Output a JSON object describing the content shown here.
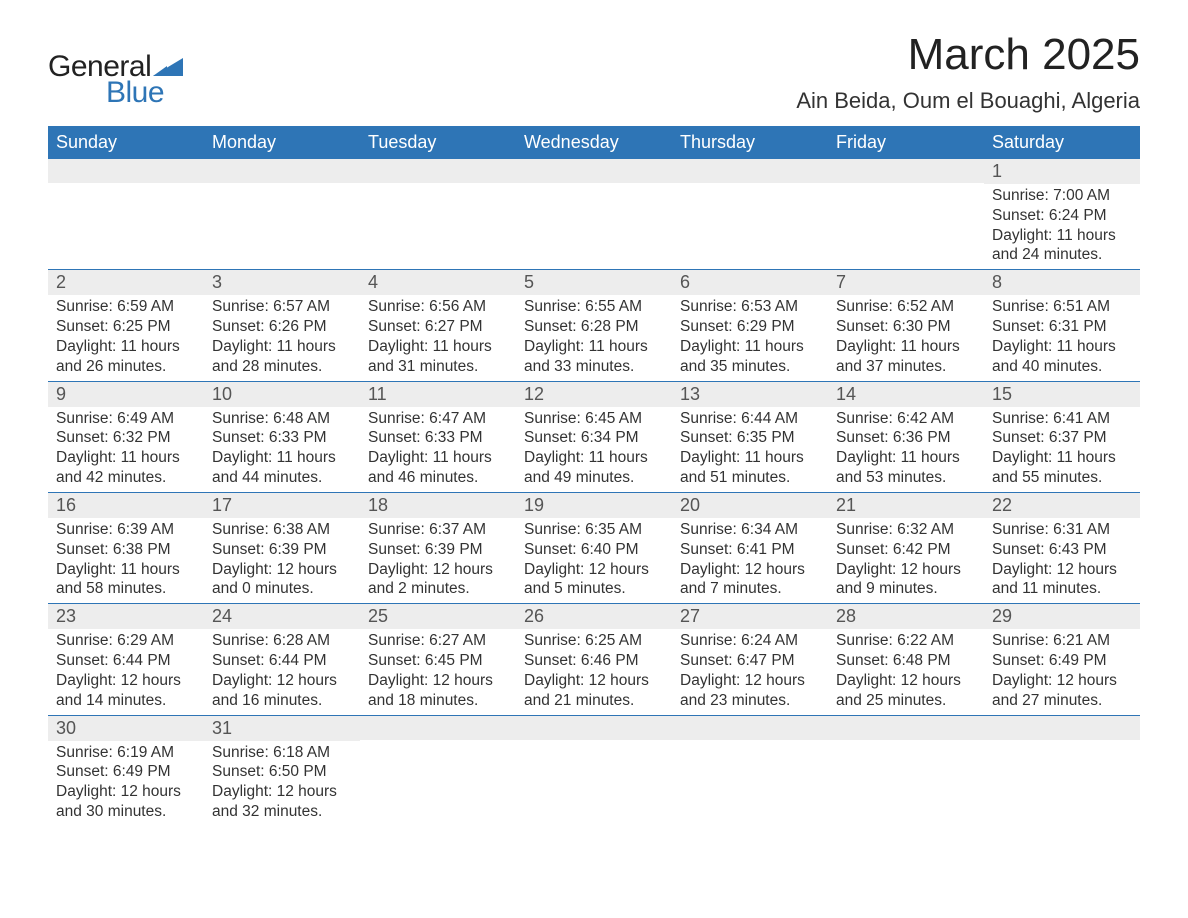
{
  "brand": {
    "name_part1": "General",
    "name_part2": "Blue",
    "text_color": "#222222",
    "accent_color": "#2e75b6"
  },
  "header": {
    "title": "March 2025",
    "subtitle": "Ain Beida, Oum el Bouaghi, Algeria"
  },
  "calendar": {
    "type": "table",
    "day_names": [
      "Sunday",
      "Monday",
      "Tuesday",
      "Wednesday",
      "Thursday",
      "Friday",
      "Saturday"
    ],
    "header_bg": "#2e75b6",
    "header_text_color": "#ffffff",
    "daynum_bg": "#ededed",
    "row_divider_color": "#2e75b6",
    "body_text_color": "#333333",
    "font_family": "Arial",
    "header_fontsize": 18,
    "daynum_fontsize": 18,
    "body_fontsize": 15.5,
    "start_weekday_index": 6,
    "days": [
      {
        "n": 1,
        "sunrise": "7:00 AM",
        "sunset": "6:24 PM",
        "daylight": "11 hours and 24 minutes."
      },
      {
        "n": 2,
        "sunrise": "6:59 AM",
        "sunset": "6:25 PM",
        "daylight": "11 hours and 26 minutes."
      },
      {
        "n": 3,
        "sunrise": "6:57 AM",
        "sunset": "6:26 PM",
        "daylight": "11 hours and 28 minutes."
      },
      {
        "n": 4,
        "sunrise": "6:56 AM",
        "sunset": "6:27 PM",
        "daylight": "11 hours and 31 minutes."
      },
      {
        "n": 5,
        "sunrise": "6:55 AM",
        "sunset": "6:28 PM",
        "daylight": "11 hours and 33 minutes."
      },
      {
        "n": 6,
        "sunrise": "6:53 AM",
        "sunset": "6:29 PM",
        "daylight": "11 hours and 35 minutes."
      },
      {
        "n": 7,
        "sunrise": "6:52 AM",
        "sunset": "6:30 PM",
        "daylight": "11 hours and 37 minutes."
      },
      {
        "n": 8,
        "sunrise": "6:51 AM",
        "sunset": "6:31 PM",
        "daylight": "11 hours and 40 minutes."
      },
      {
        "n": 9,
        "sunrise": "6:49 AM",
        "sunset": "6:32 PM",
        "daylight": "11 hours and 42 minutes."
      },
      {
        "n": 10,
        "sunrise": "6:48 AM",
        "sunset": "6:33 PM",
        "daylight": "11 hours and 44 minutes."
      },
      {
        "n": 11,
        "sunrise": "6:47 AM",
        "sunset": "6:33 PM",
        "daylight": "11 hours and 46 minutes."
      },
      {
        "n": 12,
        "sunrise": "6:45 AM",
        "sunset": "6:34 PM",
        "daylight": "11 hours and 49 minutes."
      },
      {
        "n": 13,
        "sunrise": "6:44 AM",
        "sunset": "6:35 PM",
        "daylight": "11 hours and 51 minutes."
      },
      {
        "n": 14,
        "sunrise": "6:42 AM",
        "sunset": "6:36 PM",
        "daylight": "11 hours and 53 minutes."
      },
      {
        "n": 15,
        "sunrise": "6:41 AM",
        "sunset": "6:37 PM",
        "daylight": "11 hours and 55 minutes."
      },
      {
        "n": 16,
        "sunrise": "6:39 AM",
        "sunset": "6:38 PM",
        "daylight": "11 hours and 58 minutes."
      },
      {
        "n": 17,
        "sunrise": "6:38 AM",
        "sunset": "6:39 PM",
        "daylight": "12 hours and 0 minutes."
      },
      {
        "n": 18,
        "sunrise": "6:37 AM",
        "sunset": "6:39 PM",
        "daylight": "12 hours and 2 minutes."
      },
      {
        "n": 19,
        "sunrise": "6:35 AM",
        "sunset": "6:40 PM",
        "daylight": "12 hours and 5 minutes."
      },
      {
        "n": 20,
        "sunrise": "6:34 AM",
        "sunset": "6:41 PM",
        "daylight": "12 hours and 7 minutes."
      },
      {
        "n": 21,
        "sunrise": "6:32 AM",
        "sunset": "6:42 PM",
        "daylight": "12 hours and 9 minutes."
      },
      {
        "n": 22,
        "sunrise": "6:31 AM",
        "sunset": "6:43 PM",
        "daylight": "12 hours and 11 minutes."
      },
      {
        "n": 23,
        "sunrise": "6:29 AM",
        "sunset": "6:44 PM",
        "daylight": "12 hours and 14 minutes."
      },
      {
        "n": 24,
        "sunrise": "6:28 AM",
        "sunset": "6:44 PM",
        "daylight": "12 hours and 16 minutes."
      },
      {
        "n": 25,
        "sunrise": "6:27 AM",
        "sunset": "6:45 PM",
        "daylight": "12 hours and 18 minutes."
      },
      {
        "n": 26,
        "sunrise": "6:25 AM",
        "sunset": "6:46 PM",
        "daylight": "12 hours and 21 minutes."
      },
      {
        "n": 27,
        "sunrise": "6:24 AM",
        "sunset": "6:47 PM",
        "daylight": "12 hours and 23 minutes."
      },
      {
        "n": 28,
        "sunrise": "6:22 AM",
        "sunset": "6:48 PM",
        "daylight": "12 hours and 25 minutes."
      },
      {
        "n": 29,
        "sunrise": "6:21 AM",
        "sunset": "6:49 PM",
        "daylight": "12 hours and 27 minutes."
      },
      {
        "n": 30,
        "sunrise": "6:19 AM",
        "sunset": "6:49 PM",
        "daylight": "12 hours and 30 minutes."
      },
      {
        "n": 31,
        "sunrise": "6:18 AM",
        "sunset": "6:50 PM",
        "daylight": "12 hours and 32 minutes."
      }
    ],
    "labels": {
      "sunrise_prefix": "Sunrise: ",
      "sunset_prefix": "Sunset: ",
      "daylight_prefix": "Daylight: "
    }
  }
}
